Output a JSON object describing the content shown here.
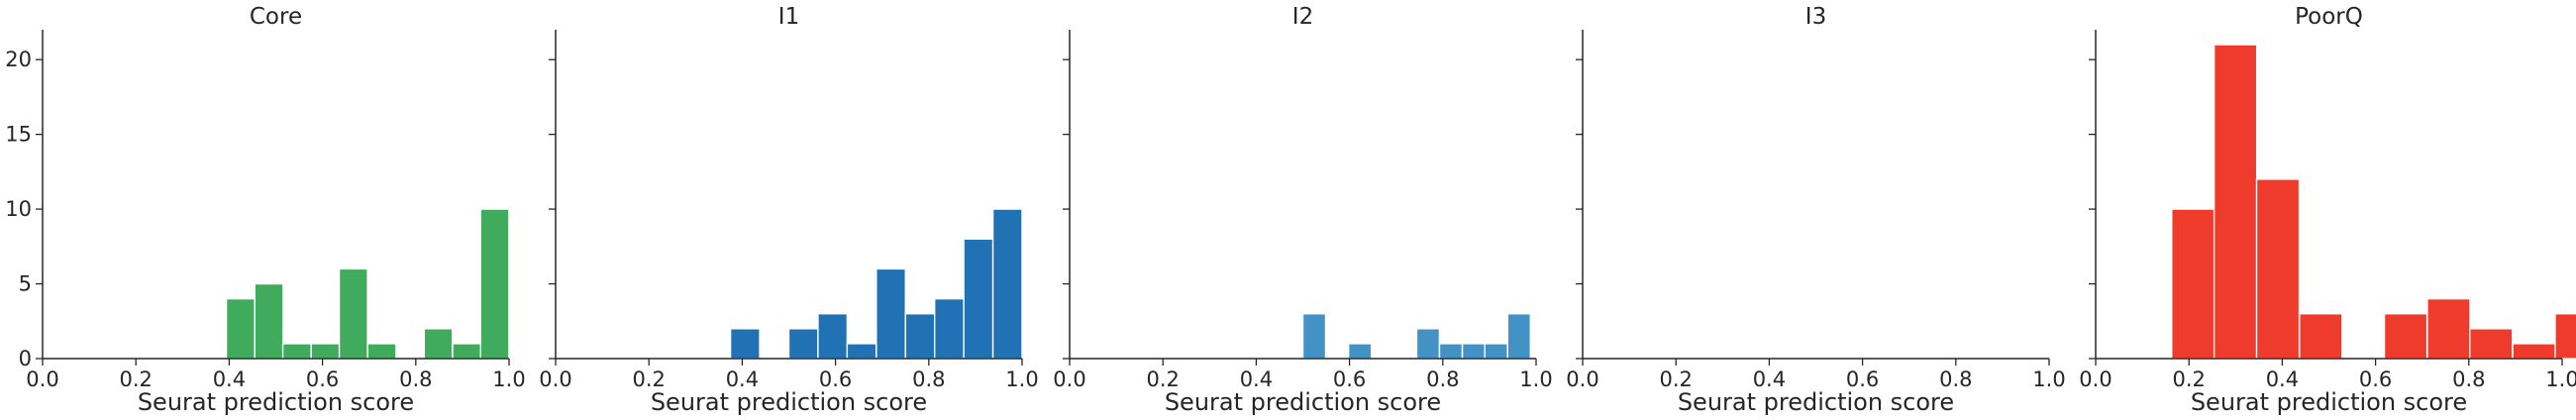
{
  "chart_data": [
    {
      "type": "bar",
      "title": "Core",
      "xlabel": "Seurat prediction score",
      "ylabel": "",
      "xlim": [
        0.0,
        1.0
      ],
      "ylim": [
        0,
        22
      ],
      "color": "#41ab5d",
      "bin_width": 0.0606,
      "bins": [
        {
          "x0": 0.394,
          "count": 4
        },
        {
          "x0": 0.455,
          "count": 5
        },
        {
          "x0": 0.515,
          "count": 1
        },
        {
          "x0": 0.576,
          "count": 1
        },
        {
          "x0": 0.636,
          "count": 6
        },
        {
          "x0": 0.697,
          "count": 1
        },
        {
          "x0": 0.818,
          "count": 2
        },
        {
          "x0": 0.879,
          "count": 1
        },
        {
          "x0": 0.939,
          "count": 10
        }
      ]
    },
    {
      "type": "bar",
      "title": "I1",
      "xlabel": "Seurat prediction score",
      "ylabel": "",
      "xlim": [
        0.0,
        1.0
      ],
      "ylim": [
        0,
        22
      ],
      "color": "#2171b5",
      "bin_width": 0.0625,
      "bins": [
        {
          "x0": 0.375,
          "count": 2
        },
        {
          "x0": 0.5,
          "count": 2
        },
        {
          "x0": 0.5625,
          "count": 3
        },
        {
          "x0": 0.625,
          "count": 1
        },
        {
          "x0": 0.6875,
          "count": 6
        },
        {
          "x0": 0.75,
          "count": 3
        },
        {
          "x0": 0.8125,
          "count": 4
        },
        {
          "x0": 0.875,
          "count": 8
        },
        {
          "x0": 0.9375,
          "count": 10
        }
      ]
    },
    {
      "type": "bar",
      "title": "I2",
      "xlabel": "Seurat prediction score",
      "ylabel": "",
      "xlim": [
        0.0,
        1.0
      ],
      "ylim": [
        0,
        22
      ],
      "color": "#4292c6",
      "bin_width": 0.0488,
      "bins": [
        {
          "x0": 0.5,
          "count": 3
        },
        {
          "x0": 0.598,
          "count": 1
        },
        {
          "x0": 0.744,
          "count": 2
        },
        {
          "x0": 0.793,
          "count": 1
        },
        {
          "x0": 0.842,
          "count": 1
        },
        {
          "x0": 0.89,
          "count": 1
        },
        {
          "x0": 0.939,
          "count": 3
        }
      ]
    },
    {
      "type": "bar",
      "title": "I3",
      "xlabel": "Seurat prediction score",
      "ylabel": "",
      "xlim": [
        0.0,
        1.0
      ],
      "ylim": [
        0,
        22
      ],
      "color": "#6baed6",
      "bin_width": 0.09,
      "bins": []
    },
    {
      "type": "bar",
      "title": "PoorQ",
      "xlabel": "Seurat prediction score",
      "ylabel": "",
      "xlim": [
        0.0,
        1.0
      ],
      "ylim": [
        0,
        22
      ],
      "color": "#ef3b2c",
      "bin_width": 0.0914,
      "bins": [
        {
          "x0": 0.163,
          "count": 10
        },
        {
          "x0": 0.254,
          "count": 21
        },
        {
          "x0": 0.345,
          "count": 12
        },
        {
          "x0": 0.437,
          "count": 3
        },
        {
          "x0": 0.619,
          "count": 3
        },
        {
          "x0": 0.711,
          "count": 4
        },
        {
          "x0": 0.802,
          "count": 2
        },
        {
          "x0": 0.894,
          "count": 1
        },
        {
          "x0": 0.985,
          "count": 3
        }
      ]
    }
  ],
  "axes": {
    "x_ticks": [
      "0.0",
      "0.2",
      "0.4",
      "0.6",
      "0.8",
      "1.0"
    ],
    "x_tick_values": [
      0.0,
      0.2,
      0.4,
      0.6,
      0.8,
      1.0
    ],
    "y_ticks": [
      "0",
      "5",
      "10",
      "15",
      "20"
    ],
    "y_tick_values": [
      0,
      5,
      10,
      15,
      20
    ],
    "y_ticklabels_on_first_panel_only": true,
    "grid": false
  }
}
